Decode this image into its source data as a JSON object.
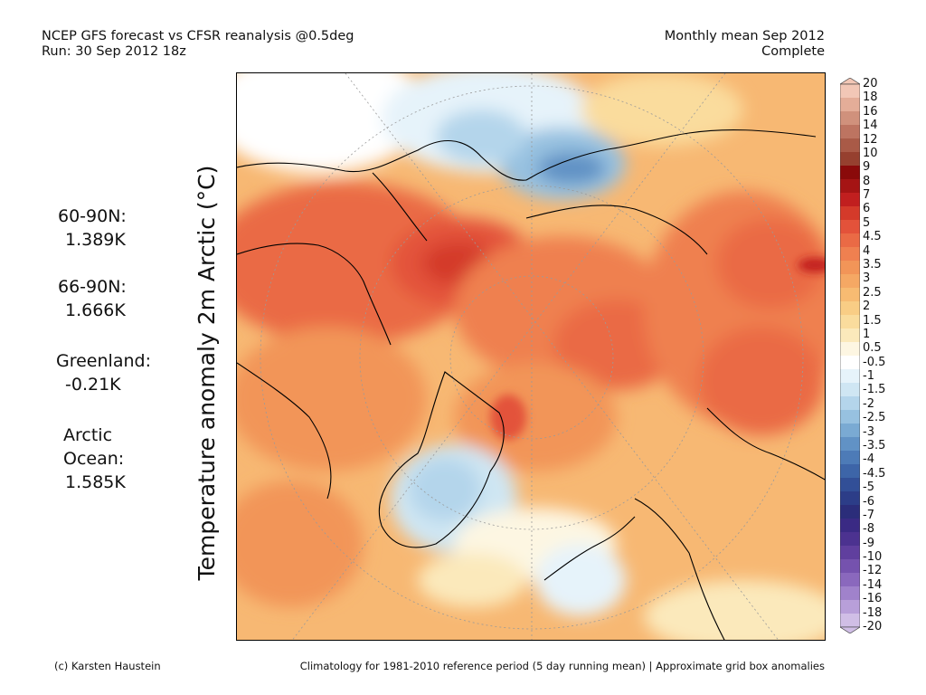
{
  "header": {
    "title_line1": "NCEP GFS forecast vs CFSR reanalysis @0.5deg",
    "title_line2": "Run: 30 Sep 2012 18z",
    "period_line1": "Monthly mean Sep 2012",
    "period_line2": "Complete"
  },
  "axis_label": "Temperature anomaly 2m Arctic (°C)",
  "stats": {
    "s1_label": "60-90N:",
    "s1_value": "1.389K",
    "s2_label": "66-90N:",
    "s2_value": "1.666K",
    "s3_label": "Greenland:",
    "s3_value": "-0.21K",
    "s4_label_a": "Arctic",
    "s4_label_b": "Ocean:",
    "s4_value": "1.585K"
  },
  "colorbar": {
    "levels": [
      "20",
      "18",
      "16",
      "14",
      "12",
      "10",
      "9",
      "8",
      "7",
      "6",
      "5",
      "4.5",
      "4",
      "3.5",
      "3",
      "2.5",
      "2",
      "1.5",
      "1",
      "0.5",
      "-0.5",
      "-1",
      "-1.5",
      "-2",
      "-2.5",
      "-3",
      "-3.5",
      "-4",
      "-4.5",
      "-5",
      "-6",
      "-7",
      "-8",
      "-9",
      "-10",
      "-12",
      "-14",
      "-16",
      "-18",
      "-20"
    ],
    "colors": [
      "#f2c7b6",
      "#e4ad98",
      "#d0917c",
      "#bd7461",
      "#a95a47",
      "#96402f",
      "#8a0a0a",
      "#a51414",
      "#c11f1f",
      "#d43a2a",
      "#e3523a",
      "#ea6a45",
      "#ef8050",
      "#f29558",
      "#f5a864",
      "#f7bb72",
      "#f9cd85",
      "#fadc9d",
      "#fbe9bb",
      "#fdf6e2",
      "#ffffff",
      "#e6f3fa",
      "#cfe6f3",
      "#b4d5eb",
      "#97c1e0",
      "#7aaad3",
      "#6192c5",
      "#4d7bb7",
      "#3d65a8",
      "#324f97",
      "#2c3d88",
      "#2b2d7a",
      "#3a2a84",
      "#4c3290",
      "#603f9e",
      "#7552ae",
      "#8a68bd",
      "#a082cb",
      "#b89fd9",
      "#d0bee6"
    ]
  },
  "footer": {
    "left": "(c) Karsten Haustein",
    "right": "Climatology for 1981-2010 reference period (5 day running mean) | Approximate grid box anomalies"
  }
}
